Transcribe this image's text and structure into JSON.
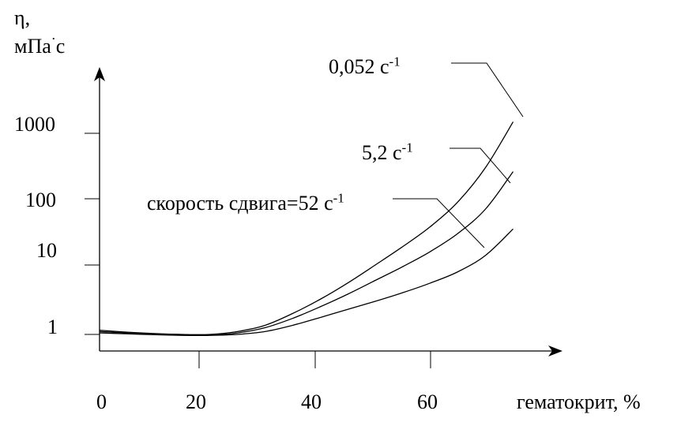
{
  "chart_data": {
    "type": "line",
    "ylabel": {
      "symbol": "η,",
      "unit_main": "мПа",
      "unit_dot": "·",
      "unit_end": "с"
    },
    "xlabel": "гематокрит, %",
    "x_ticks": [
      "0",
      "20",
      "40",
      "60"
    ],
    "y_ticks": [
      "1",
      "10",
      "100",
      "1000"
    ],
    "y_scale": "log",
    "xlim": [
      0,
      80
    ],
    "grid": false,
    "series": [
      {
        "name": "0,052 с-1",
        "label_main": "0,052 с",
        "label_sup": "-1",
        "points": [
          [
            0,
            1.15
          ],
          [
            5,
            1.08
          ],
          [
            10,
            1.03
          ],
          [
            15,
            1.0
          ],
          [
            20,
            1.0
          ],
          [
            25,
            1.1
          ],
          [
            30,
            1.35
          ],
          [
            35,
            2.0
          ],
          [
            40,
            3.2
          ],
          [
            45,
            5.5
          ],
          [
            50,
            10
          ],
          [
            55,
            19
          ],
          [
            60,
            38
          ],
          [
            65,
            90
          ],
          [
            70,
            300
          ],
          [
            75,
            1500
          ]
        ]
      },
      {
        "name": "5,2 с-1",
        "label_main": "5,2 с",
        "label_sup": "-1",
        "points": [
          [
            0,
            1.1
          ],
          [
            5,
            1.05
          ],
          [
            10,
            1.0
          ],
          [
            15,
            0.98
          ],
          [
            20,
            0.98
          ],
          [
            25,
            1.05
          ],
          [
            30,
            1.25
          ],
          [
            35,
            1.7
          ],
          [
            40,
            2.5
          ],
          [
            45,
            3.8
          ],
          [
            50,
            6
          ],
          [
            55,
            9.5
          ],
          [
            60,
            16
          ],
          [
            65,
            30
          ],
          [
            70,
            70
          ],
          [
            75,
            260
          ]
        ]
      },
      {
        "name": "скорость сдвига=52 с-1",
        "label_main": "скорость сдвига=52 с",
        "label_sup": "-1",
        "points": [
          [
            0,
            1.05
          ],
          [
            5,
            1.02
          ],
          [
            10,
            0.99
          ],
          [
            15,
            0.97
          ],
          [
            20,
            0.97
          ],
          [
            25,
            1.0
          ],
          [
            30,
            1.1
          ],
          [
            35,
            1.35
          ],
          [
            40,
            1.75
          ],
          [
            45,
            2.3
          ],
          [
            50,
            3.0
          ],
          [
            55,
            4.0
          ],
          [
            60,
            5.5
          ],
          [
            65,
            8
          ],
          [
            70,
            14
          ],
          [
            75,
            35
          ]
        ]
      }
    ]
  }
}
